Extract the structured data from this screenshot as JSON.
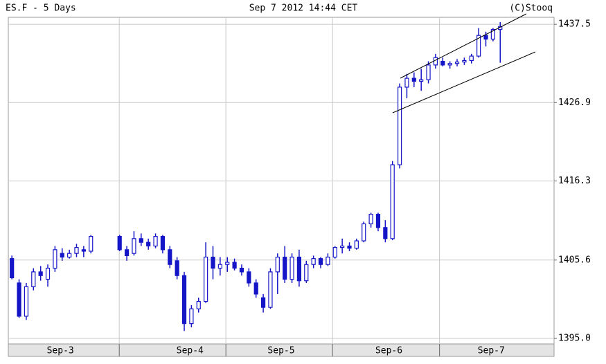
{
  "chart_data": {
    "type": "candlestick",
    "title": "ES.F - 5 Days",
    "subtitle": "Sep 7 2012 14:44 CET",
    "credit": "(C)Stooq",
    "color": "#1515c8",
    "grid": true,
    "x": [
      1,
      3,
      5,
      7,
      9,
      11,
      13,
      15,
      17,
      19,
      21,
      23,
      31,
      33,
      35,
      37,
      39,
      41,
      43,
      45,
      47,
      49,
      51,
      53,
      55,
      57,
      59,
      61,
      63,
      65,
      67,
      69,
      71,
      73,
      75,
      77,
      79,
      81,
      83,
      85,
      87,
      89,
      91,
      93,
      95,
      97,
      99,
      101,
      103,
      105,
      107,
      109,
      111,
      113,
      115,
      117,
      119,
      121,
      123,
      125,
      127,
      129,
      131,
      133,
      135,
      137
    ],
    "open": [
      1405.8,
      1402.5,
      1398.0,
      1402.0,
      1404.0,
      1403.0,
      1404.5,
      1406.5,
      1406.0,
      1406.5,
      1407.0,
      1406.8,
      1408.8,
      1407.0,
      1406.5,
      1408.5,
      1408.0,
      1407.5,
      1408.8,
      1407.0,
      1405.5,
      1403.5,
      1397.0,
      1399.0,
      1400.0,
      1406.0,
      1404.5,
      1405.0,
      1405.3,
      1404.5,
      1404.0,
      1402.5,
      1400.5,
      1399.2,
      1404.0,
      1406.0,
      1403.0,
      1406.0,
      1402.8,
      1405.0,
      1405.8,
      1405.0,
      1406.0,
      1407.3,
      1407.5,
      1407.2,
      1408.2,
      1410.5,
      1411.8,
      1410.0,
      1408.5,
      1418.5,
      1429.0,
      1430.2,
      1429.8,
      1430.0,
      1432.0,
      1432.5,
      1432.0,
      1432.2,
      1432.4,
      1432.6,
      1433.2,
      1436.0,
      1435.5,
      1436.8
    ],
    "high": [
      1406.2,
      1403.0,
      1402.5,
      1404.5,
      1404.8,
      1405.0,
      1407.5,
      1407.2,
      1407.0,
      1407.8,
      1407.5,
      1409.0,
      1409.0,
      1407.5,
      1409.5,
      1409.2,
      1408.5,
      1409.2,
      1409.0,
      1407.5,
      1406.0,
      1404.0,
      1399.5,
      1400.5,
      1408.0,
      1407.5,
      1406.0,
      1406.0,
      1405.8,
      1405.0,
      1404.5,
      1403.0,
      1401.0,
      1404.5,
      1406.5,
      1407.5,
      1406.5,
      1407.0,
      1405.5,
      1406.2,
      1406.0,
      1406.5,
      1407.5,
      1408.5,
      1408.0,
      1408.5,
      1410.8,
      1412.0,
      1412.0,
      1411.0,
      1419.0,
      1429.5,
      1430.8,
      1431.0,
      1431.5,
      1432.5,
      1433.5,
      1433.0,
      1432.5,
      1432.8,
      1433.0,
      1433.5,
      1437.0,
      1436.5,
      1437.0,
      1437.8
    ],
    "low": [
      1403.0,
      1397.8,
      1397.5,
      1401.5,
      1402.8,
      1402.0,
      1404.0,
      1405.5,
      1405.8,
      1406.0,
      1406.0,
      1406.5,
      1406.8,
      1405.5,
      1406.2,
      1407.5,
      1407.0,
      1407.2,
      1406.5,
      1404.5,
      1403.0,
      1396.0,
      1396.5,
      1398.5,
      1399.8,
      1403.0,
      1403.5,
      1404.0,
      1404.2,
      1403.5,
      1402.0,
      1400.5,
      1398.5,
      1399.0,
      1401.0,
      1402.5,
      1402.5,
      1402.0,
      1402.5,
      1404.5,
      1404.5,
      1404.8,
      1405.8,
      1406.5,
      1406.8,
      1407.0,
      1408.0,
      1410.0,
      1409.5,
      1408.0,
      1408.3,
      1418.0,
      1427.5,
      1429.0,
      1428.5,
      1429.5,
      1431.5,
      1431.8,
      1431.5,
      1431.8,
      1432.0,
      1432.2,
      1433.0,
      1434.5,
      1435.2,
      1432.3
    ],
    "close": [
      1403.2,
      1398.0,
      1402.0,
      1404.0,
      1403.5,
      1404.5,
      1407.0,
      1406.0,
      1406.5,
      1407.3,
      1406.8,
      1408.8,
      1407.0,
      1406.2,
      1408.5,
      1408.0,
      1407.5,
      1408.8,
      1407.0,
      1405.0,
      1403.5,
      1397.0,
      1399.0,
      1400.0,
      1406.0,
      1404.5,
      1405.0,
      1405.3,
      1404.5,
      1404.0,
      1402.5,
      1401.0,
      1399.2,
      1404.0,
      1406.0,
      1403.0,
      1406.0,
      1402.8,
      1405.0,
      1405.8,
      1405.0,
      1406.0,
      1407.3,
      1407.5,
      1407.2,
      1408.2,
      1410.5,
      1411.8,
      1410.0,
      1408.5,
      1418.5,
      1429.0,
      1430.2,
      1429.8,
      1430.0,
      1432.0,
      1433.0,
      1432.0,
      1432.2,
      1432.4,
      1432.6,
      1433.2,
      1436.0,
      1435.5,
      1436.8,
      1437.2
    ],
    "xlim": [
      0,
      152
    ],
    "xticks": [
      {
        "value": 14.5,
        "label": "Sep-3"
      },
      {
        "value": 50.6,
        "label": "Sep-4"
      },
      {
        "value": 76,
        "label": "Sep-5"
      },
      {
        "value": 106,
        "label": "Sep-6"
      },
      {
        "value": 134.5,
        "label": "Sep-7"
      }
    ],
    "xgrid": [
      30.9,
      60.6,
      90.3,
      120.1
    ],
    "ylim": [
      1394.25,
      1438.45
    ],
    "yticks": [
      1437.5,
      1426.9,
      1416.3,
      1405.6,
      {
        "value": 1395,
        "label": "1395.0"
      }
    ]
  }
}
